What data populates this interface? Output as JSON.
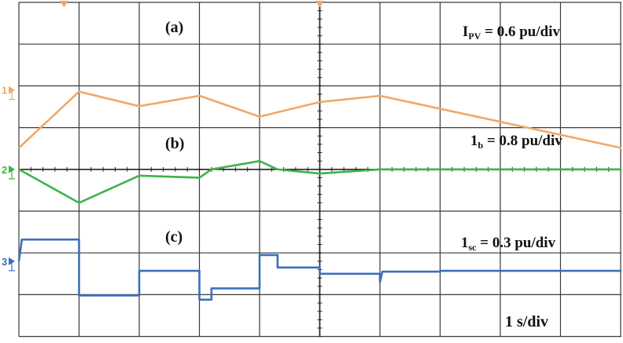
{
  "chart_data": [
    {
      "type": "line",
      "panel_label": "(a)",
      "channel_marker": "1",
      "scale_label": {
        "symbol": "I",
        "sub": "PV",
        "rest": " = 0.6 pu/div"
      },
      "color": "#f0a868",
      "x_unit": "s",
      "y_unit": "div",
      "points": [
        [
          0.0,
          -0.95
        ],
        [
          1.0,
          0.4
        ],
        [
          2.0,
          0.05
        ],
        [
          3.0,
          0.3
        ],
        [
          4.0,
          -0.2
        ],
        [
          5.0,
          0.15
        ],
        [
          6.0,
          0.3
        ],
        [
          10.3,
          -0.95
        ]
      ]
    },
    {
      "type": "line",
      "panel_label": "(b)",
      "channel_marker": "2",
      "scale_label": {
        "symbol": "1",
        "sub": "b",
        "rest": " = 0.8 pu/div"
      },
      "color": "#3cb44b",
      "x_unit": "s",
      "y_unit": "div",
      "points": [
        [
          0.0,
          0.0
        ],
        [
          1.0,
          -0.8
        ],
        [
          2.0,
          -0.15
        ],
        [
          3.0,
          -0.2
        ],
        [
          3.2,
          0.0
        ],
        [
          4.0,
          0.2
        ],
        [
          4.3,
          0.0
        ],
        [
          5.0,
          -0.1
        ],
        [
          6.0,
          0.0
        ],
        [
          10.3,
          0.0
        ]
      ]
    },
    {
      "type": "line",
      "panel_label": "(c)",
      "channel_marker": "3",
      "scale_label": {
        "symbol": "1",
        "sub": "sc",
        "rest": " = 0.3 pu/div"
      },
      "color": "#3c6fbd",
      "x_unit": "s",
      "y_unit": "div",
      "points": [
        [
          0.0,
          0.2
        ],
        [
          0.05,
          0.72
        ],
        [
          1.0,
          0.72
        ],
        [
          1.0,
          -0.62
        ],
        [
          2.0,
          -0.62
        ],
        [
          2.0,
          -0.03
        ],
        [
          3.0,
          -0.03
        ],
        [
          3.0,
          -0.72
        ],
        [
          3.2,
          -0.72
        ],
        [
          3.2,
          -0.45
        ],
        [
          4.0,
          -0.45
        ],
        [
          4.0,
          0.35
        ],
        [
          4.3,
          0.35
        ],
        [
          4.3,
          0.05
        ],
        [
          5.0,
          0.05
        ],
        [
          5.0,
          -0.1
        ],
        [
          6.0,
          -0.1
        ],
        [
          6.0,
          -0.3
        ],
        [
          6.04,
          -0.05
        ],
        [
          7.0,
          -0.05
        ],
        [
          7.0,
          -0.03
        ],
        [
          10.3,
          -0.03
        ]
      ]
    }
  ],
  "time_scale": "1 s/div",
  "grid": {
    "divisions_x": 10,
    "divisions_y": 8,
    "grid_color": "#3a3a3a"
  }
}
